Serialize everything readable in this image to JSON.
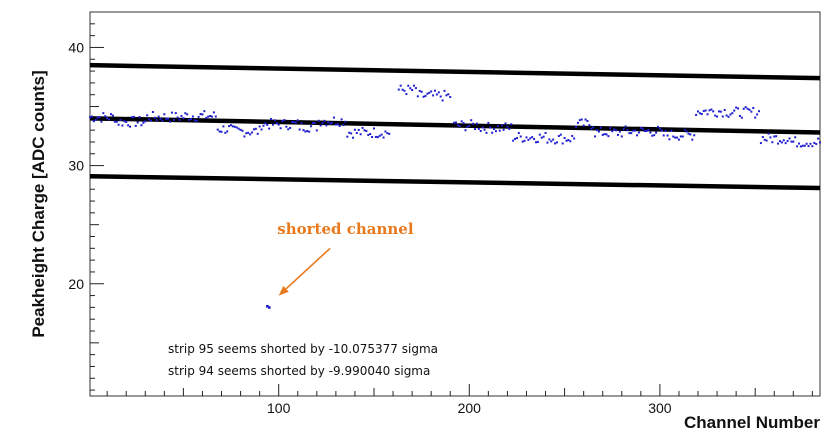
{
  "chart_data": {
    "type": "scatter",
    "xlabel": "Channel Number",
    "ylabel": "Peakheight Charge [ADC counts]",
    "xlim": [
      1,
      384
    ],
    "ylim": [
      10.5,
      43
    ],
    "x_ticks": [
      100,
      200,
      300
    ],
    "y_ticks": [
      20,
      30,
      40
    ],
    "grid": false,
    "point_color": "#1f1fd0",
    "line_color": "#000000",
    "annotation_color": "#e87a1c",
    "segments": [
      {
        "x0": 1,
        "x1": 14,
        "y": 34.1
      },
      {
        "x0": 15,
        "x1": 30,
        "y": 33.7
      },
      {
        "x0": 31,
        "x1": 50,
        "y": 34.1
      },
      {
        "x0": 51,
        "x1": 67,
        "y": 34.2
      },
      {
        "x0": 68,
        "x1": 75,
        "y": 33.1
      },
      {
        "x0": 76,
        "x1": 90,
        "y": 32.9
      },
      {
        "x0": 91,
        "x1": 110,
        "y": 33.5
      },
      {
        "x0": 111,
        "x1": 120,
        "y": 33.3
      },
      {
        "x0": 121,
        "x1": 135,
        "y": 33.8
      },
      {
        "x0": 136,
        "x1": 158,
        "y": 32.8
      },
      {
        "x0": 163,
        "x1": 172,
        "y": 36.4
      },
      {
        "x0": 173,
        "x1": 190,
        "y": 35.9
      },
      {
        "x0": 192,
        "x1": 205,
        "y": 33.4
      },
      {
        "x0": 206,
        "x1": 222,
        "y": 33.2
      },
      {
        "x0": 223,
        "x1": 240,
        "y": 32.4
      },
      {
        "x0": 241,
        "x1": 255,
        "y": 32.3
      },
      {
        "x0": 256,
        "x1": 265,
        "y": 33.5
      },
      {
        "x0": 266,
        "x1": 280,
        "y": 32.8
      },
      {
        "x0": 281,
        "x1": 300,
        "y": 32.9
      },
      {
        "x0": 301,
        "x1": 318,
        "y": 32.6
      },
      {
        "x0": 319,
        "x1": 335,
        "y": 34.6
      },
      {
        "x0": 336,
        "x1": 352,
        "y": 34.5
      },
      {
        "x0": 353,
        "x1": 368,
        "y": 32.3
      },
      {
        "x0": 369,
        "x1": 384,
        "y": 32.0
      }
    ],
    "outliers": [
      {
        "x": 94,
        "y": 18.1
      },
      {
        "x": 95,
        "y": 18.0
      }
    ],
    "fit_lines": [
      {
        "x": [
          1,
          384
        ],
        "y": [
          38.5,
          37.4
        ]
      },
      {
        "x": [
          1,
          384
        ],
        "y": [
          34.0,
          32.8
        ]
      },
      {
        "x": [
          1,
          384
        ],
        "y": [
          29.1,
          28.1
        ]
      }
    ],
    "notes": [
      "strip 95 seems shorted by -10.075377 sigma",
      "strip 94 seems shorted by -9.990040 sigma"
    ],
    "annotation": {
      "text": "shorted channel",
      "label_at": {
        "x": 135,
        "y": 24.2
      },
      "arrow_from": {
        "x": 127,
        "y": 23.0
      },
      "arrow_to": {
        "x": 100,
        "y": 19.0
      }
    }
  }
}
